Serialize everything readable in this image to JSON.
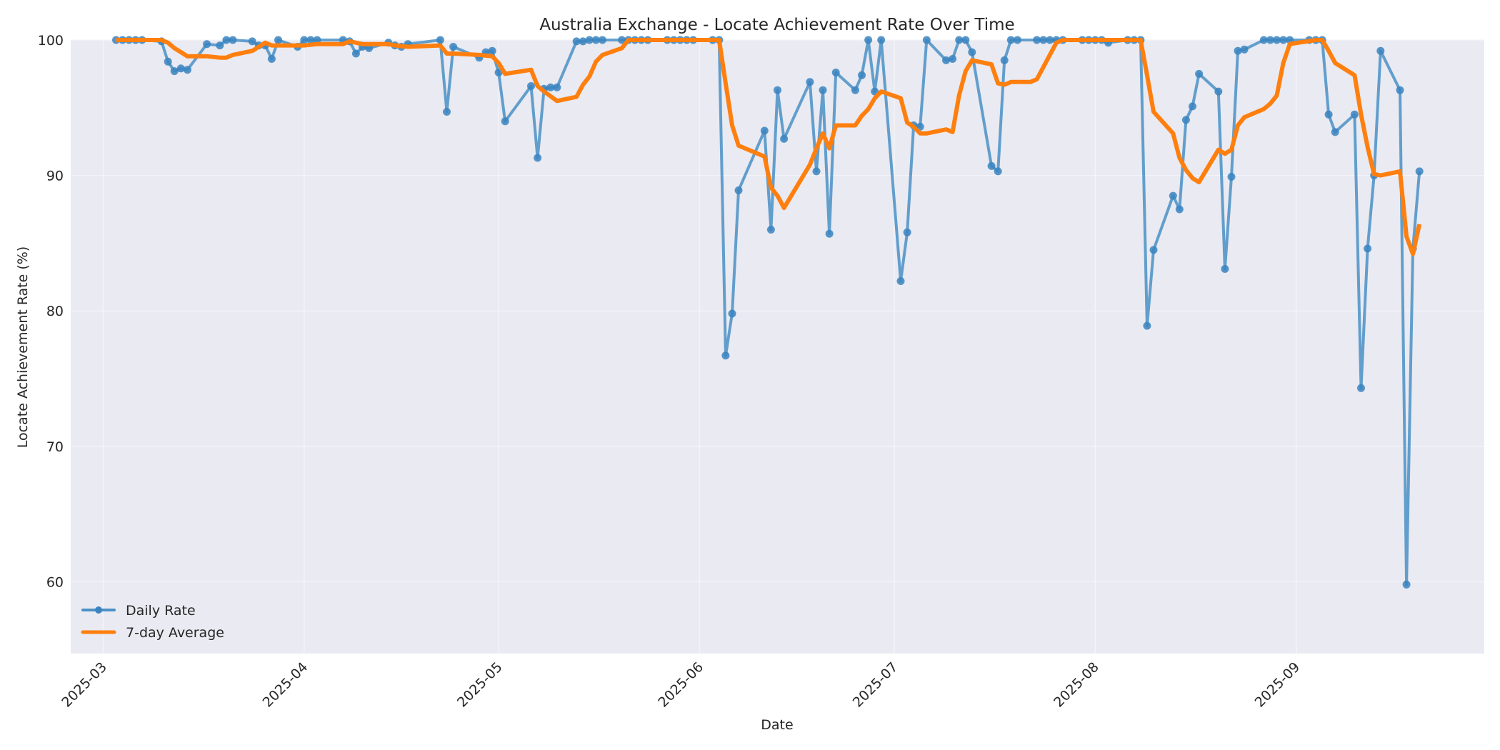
{
  "chart_data": {
    "type": "line",
    "title": "Australia Exchange - Locate Achievement Rate Over Time",
    "xlabel": "Date",
    "ylabel": "Locate Achievement Rate (%)",
    "ylim": [
      54.7,
      100
    ],
    "xlim": [
      "2025-02-24",
      "2025-09-30"
    ],
    "grid": true,
    "legend_position": "lower left",
    "x_ticks": [
      "2025-03",
      "2025-04",
      "2025-05",
      "2025-06",
      "2025-07",
      "2025-08",
      "2025-09"
    ],
    "y_ticks": [
      60,
      70,
      80,
      90,
      100
    ],
    "series": [
      {
        "name": "Daily Rate",
        "color": "#1f77b4",
        "marker": "circle",
        "points": [
          [
            "2025-03-03",
            100
          ],
          [
            "2025-03-04",
            100
          ],
          [
            "2025-03-05",
            100
          ],
          [
            "2025-03-06",
            100
          ],
          [
            "2025-03-07",
            100
          ],
          [
            "2025-03-10",
            99.9
          ],
          [
            "2025-03-11",
            98.4
          ],
          [
            "2025-03-12",
            97.7
          ],
          [
            "2025-03-13",
            97.9
          ],
          [
            "2025-03-14",
            97.8
          ],
          [
            "2025-03-17",
            99.7
          ],
          [
            "2025-03-19",
            99.6
          ],
          [
            "2025-03-20",
            100
          ],
          [
            "2025-03-21",
            100
          ],
          [
            "2025-03-24",
            99.9
          ],
          [
            "2025-03-25",
            99.6
          ],
          [
            "2025-03-26",
            99.6
          ],
          [
            "2025-03-27",
            98.6
          ],
          [
            "2025-03-28",
            100
          ],
          [
            "2025-03-31",
            99.5
          ],
          [
            "2025-04-01",
            100
          ],
          [
            "2025-04-02",
            100
          ],
          [
            "2025-04-03",
            100
          ],
          [
            "2025-04-07",
            100
          ],
          [
            "2025-04-08",
            99.9
          ],
          [
            "2025-04-09",
            99.0
          ],
          [
            "2025-04-10",
            99.5
          ],
          [
            "2025-04-11",
            99.4
          ],
          [
            "2025-04-14",
            99.8
          ],
          [
            "2025-04-15",
            99.6
          ],
          [
            "2025-04-16",
            99.5
          ],
          [
            "2025-04-17",
            99.7
          ],
          [
            "2025-04-22",
            100
          ],
          [
            "2025-04-23",
            94.7
          ],
          [
            "2025-04-24",
            99.5
          ],
          [
            "2025-04-28",
            98.7
          ],
          [
            "2025-04-29",
            99.1
          ],
          [
            "2025-04-30",
            99.2
          ],
          [
            "2025-05-01",
            97.6
          ],
          [
            "2025-05-02",
            94.0
          ],
          [
            "2025-05-06",
            96.6
          ],
          [
            "2025-05-07",
            91.3
          ],
          [
            "2025-05-08",
            96.4
          ],
          [
            "2025-05-09",
            96.5
          ],
          [
            "2025-05-10",
            96.5
          ],
          [
            "2025-05-13",
            99.9
          ],
          [
            "2025-05-14",
            99.9
          ],
          [
            "2025-05-15",
            100
          ],
          [
            "2025-05-16",
            100
          ],
          [
            "2025-05-17",
            100
          ],
          [
            "2025-05-20",
            100
          ],
          [
            "2025-05-21",
            100
          ],
          [
            "2025-05-22",
            100
          ],
          [
            "2025-05-23",
            100
          ],
          [
            "2025-05-24",
            100
          ],
          [
            "2025-05-27",
            100
          ],
          [
            "2025-05-28",
            100
          ],
          [
            "2025-05-29",
            100
          ],
          [
            "2025-05-30",
            100
          ],
          [
            "2025-05-31",
            100
          ],
          [
            "2025-06-03",
            100
          ],
          [
            "2025-06-04",
            100
          ],
          [
            "2025-06-05",
            76.7
          ],
          [
            "2025-06-06",
            79.8
          ],
          [
            "2025-06-07",
            88.9
          ],
          [
            "2025-06-11",
            93.3
          ],
          [
            "2025-06-12",
            86.0
          ],
          [
            "2025-06-13",
            96.3
          ],
          [
            "2025-06-14",
            92.7
          ],
          [
            "2025-06-18",
            96.9
          ],
          [
            "2025-06-19",
            90.3
          ],
          [
            "2025-06-20",
            96.3
          ],
          [
            "2025-06-21",
            85.7
          ],
          [
            "2025-06-22",
            97.6
          ],
          [
            "2025-06-25",
            96.3
          ],
          [
            "2025-06-26",
            97.4
          ],
          [
            "2025-06-27",
            100
          ],
          [
            "2025-06-28",
            96.2
          ],
          [
            "2025-06-29",
            100
          ],
          [
            "2025-07-02",
            82.2
          ],
          [
            "2025-07-03",
            85.8
          ],
          [
            "2025-07-04",
            93.7
          ],
          [
            "2025-07-05",
            93.6
          ],
          [
            "2025-07-06",
            100
          ],
          [
            "2025-07-09",
            98.5
          ],
          [
            "2025-07-10",
            98.6
          ],
          [
            "2025-07-11",
            100
          ],
          [
            "2025-07-12",
            100
          ],
          [
            "2025-07-13",
            99.1
          ],
          [
            "2025-07-16",
            90.7
          ],
          [
            "2025-07-17",
            90.3
          ],
          [
            "2025-07-18",
            98.5
          ],
          [
            "2025-07-19",
            100
          ],
          [
            "2025-07-20",
            100
          ],
          [
            "2025-07-23",
            100
          ],
          [
            "2025-07-24",
            100
          ],
          [
            "2025-07-25",
            100
          ],
          [
            "2025-07-26",
            100
          ],
          [
            "2025-07-27",
            100
          ],
          [
            "2025-07-30",
            100
          ],
          [
            "2025-07-31",
            100
          ],
          [
            "2025-08-01",
            100
          ],
          [
            "2025-08-02",
            100
          ],
          [
            "2025-08-03",
            99.8
          ],
          [
            "2025-08-06",
            100
          ],
          [
            "2025-08-07",
            100
          ],
          [
            "2025-08-08",
            100
          ],
          [
            "2025-08-09",
            78.9
          ],
          [
            "2025-08-10",
            84.5
          ],
          [
            "2025-08-13",
            88.5
          ],
          [
            "2025-08-14",
            87.5
          ],
          [
            "2025-08-15",
            94.1
          ],
          [
            "2025-08-16",
            95.1
          ],
          [
            "2025-08-17",
            97.5
          ],
          [
            "2025-08-20",
            96.2
          ],
          [
            "2025-08-21",
            83.1
          ],
          [
            "2025-08-22",
            89.9
          ],
          [
            "2025-08-23",
            99.2
          ],
          [
            "2025-08-24",
            99.3
          ],
          [
            "2025-08-27",
            100
          ],
          [
            "2025-08-28",
            100
          ],
          [
            "2025-08-29",
            100
          ],
          [
            "2025-08-30",
            100
          ],
          [
            "2025-08-31",
            100
          ],
          [
            "2025-09-03",
            100
          ],
          [
            "2025-09-04",
            100
          ],
          [
            "2025-09-05",
            100
          ],
          [
            "2025-09-06",
            94.5
          ],
          [
            "2025-09-07",
            93.2
          ],
          [
            "2025-09-10",
            94.5
          ],
          [
            "2025-09-11",
            74.3
          ],
          [
            "2025-09-12",
            84.6
          ],
          [
            "2025-09-13",
            90.0
          ],
          [
            "2025-09-14",
            99.2
          ],
          [
            "2025-09-17",
            96.3
          ],
          [
            "2025-09-18",
            59.8
          ],
          [
            "2025-09-19",
            84.6
          ],
          [
            "2025-09-20",
            90.3
          ]
        ]
      },
      {
        "name": "7-day Average",
        "color": "#ff7f0e",
        "marker": "none",
        "points": [
          [
            "2025-03-03",
            100
          ],
          [
            "2025-03-07",
            100
          ],
          [
            "2025-03-10",
            100
          ],
          [
            "2025-03-11",
            99.8
          ],
          [
            "2025-03-12",
            99.4
          ],
          [
            "2025-03-13",
            99.1
          ],
          [
            "2025-03-14",
            98.8
          ],
          [
            "2025-03-17",
            98.8
          ],
          [
            "2025-03-19",
            98.7
          ],
          [
            "2025-03-20",
            98.7
          ],
          [
            "2025-03-21",
            98.9
          ],
          [
            "2025-03-24",
            99.2
          ],
          [
            "2025-03-25",
            99.5
          ],
          [
            "2025-03-26",
            99.8
          ],
          [
            "2025-03-27",
            99.6
          ],
          [
            "2025-03-28",
            99.6
          ],
          [
            "2025-03-31",
            99.6
          ],
          [
            "2025-04-01",
            99.6
          ],
          [
            "2025-04-03",
            99.7
          ],
          [
            "2025-04-07",
            99.7
          ],
          [
            "2025-04-08",
            99.9
          ],
          [
            "2025-04-09",
            99.8
          ],
          [
            "2025-04-10",
            99.7
          ],
          [
            "2025-04-11",
            99.7
          ],
          [
            "2025-04-14",
            99.7
          ],
          [
            "2025-04-15",
            99.6
          ],
          [
            "2025-04-17",
            99.5
          ],
          [
            "2025-04-22",
            99.6
          ],
          [
            "2025-04-23",
            99.0
          ],
          [
            "2025-04-24",
            99.0
          ],
          [
            "2025-04-28",
            98.9
          ],
          [
            "2025-04-30",
            98.8
          ],
          [
            "2025-05-01",
            98.3
          ],
          [
            "2025-05-02",
            97.5
          ],
          [
            "2025-05-06",
            97.8
          ],
          [
            "2025-05-07",
            96.6
          ],
          [
            "2025-05-08",
            96.2
          ],
          [
            "2025-05-10",
            95.5
          ],
          [
            "2025-05-13",
            95.8
          ],
          [
            "2025-05-14",
            96.7
          ],
          [
            "2025-05-15",
            97.3
          ],
          [
            "2025-05-16",
            98.4
          ],
          [
            "2025-05-17",
            98.9
          ],
          [
            "2025-05-20",
            99.4
          ],
          [
            "2025-05-21",
            100
          ],
          [
            "2025-06-04",
            100
          ],
          [
            "2025-06-05",
            96.8
          ],
          [
            "2025-06-06",
            93.7
          ],
          [
            "2025-06-07",
            92.2
          ],
          [
            "2025-06-11",
            91.4
          ],
          [
            "2025-06-12",
            89.1
          ],
          [
            "2025-06-13",
            88.5
          ],
          [
            "2025-06-14",
            87.6
          ],
          [
            "2025-06-18",
            90.8
          ],
          [
            "2025-06-19",
            92.0
          ],
          [
            "2025-06-20",
            93.1
          ],
          [
            "2025-06-21",
            92.0
          ],
          [
            "2025-06-22",
            93.7
          ],
          [
            "2025-06-25",
            93.7
          ],
          [
            "2025-06-26",
            94.4
          ],
          [
            "2025-06-27",
            94.9
          ],
          [
            "2025-06-28",
            95.7
          ],
          [
            "2025-06-29",
            96.2
          ],
          [
            "2025-07-02",
            95.7
          ],
          [
            "2025-07-03",
            93.9
          ],
          [
            "2025-07-04",
            93.6
          ],
          [
            "2025-07-05",
            93.1
          ],
          [
            "2025-07-06",
            93.1
          ],
          [
            "2025-07-09",
            93.4
          ],
          [
            "2025-07-10",
            93.2
          ],
          [
            "2025-07-11",
            95.9
          ],
          [
            "2025-07-12",
            97.7
          ],
          [
            "2025-07-13",
            98.5
          ],
          [
            "2025-07-16",
            98.2
          ],
          [
            "2025-07-17",
            96.8
          ],
          [
            "2025-07-18",
            96.7
          ],
          [
            "2025-07-19",
            96.9
          ],
          [
            "2025-07-22",
            96.9
          ],
          [
            "2025-07-23",
            97.1
          ],
          [
            "2025-07-26",
            99.8
          ],
          [
            "2025-07-27",
            100
          ],
          [
            "2025-08-08",
            100
          ],
          [
            "2025-08-09",
            97.4
          ],
          [
            "2025-08-10",
            94.7
          ],
          [
            "2025-08-13",
            93.1
          ],
          [
            "2025-08-14",
            91.3
          ],
          [
            "2025-08-15",
            90.4
          ],
          [
            "2025-08-16",
            89.8
          ],
          [
            "2025-08-17",
            89.5
          ],
          [
            "2025-08-20",
            91.9
          ],
          [
            "2025-08-21",
            91.6
          ],
          [
            "2025-08-22",
            91.9
          ],
          [
            "2025-08-23",
            93.7
          ],
          [
            "2025-08-24",
            94.3
          ],
          [
            "2025-08-27",
            94.9
          ],
          [
            "2025-08-28",
            95.3
          ],
          [
            "2025-08-29",
            95.9
          ],
          [
            "2025-08-30",
            98.3
          ],
          [
            "2025-08-31",
            99.7
          ],
          [
            "2025-09-04",
            100
          ],
          [
            "2025-09-05",
            100
          ],
          [
            "2025-09-06",
            99.2
          ],
          [
            "2025-09-07",
            98.3
          ],
          [
            "2025-09-10",
            97.4
          ],
          [
            "2025-09-11",
            94.5
          ],
          [
            "2025-09-12",
            92.1
          ],
          [
            "2025-09-13",
            90.1
          ],
          [
            "2025-09-14",
            90.0
          ],
          [
            "2025-09-17",
            90.3
          ],
          [
            "2025-09-18",
            85.5
          ],
          [
            "2025-09-19",
            84.2
          ],
          [
            "2025-09-20",
            86.4
          ]
        ]
      }
    ]
  },
  "legend": {
    "items": [
      {
        "label": "Daily Rate",
        "color": "#1f77b4"
      },
      {
        "label": "7-day Average",
        "color": "#ff7f0e"
      }
    ]
  },
  "style": {
    "plot_bg": "#eaeaf2",
    "grid_color": "#f3f3f8",
    "daily_color": "#4a90c6",
    "avg_color": "#ff7f0e"
  }
}
